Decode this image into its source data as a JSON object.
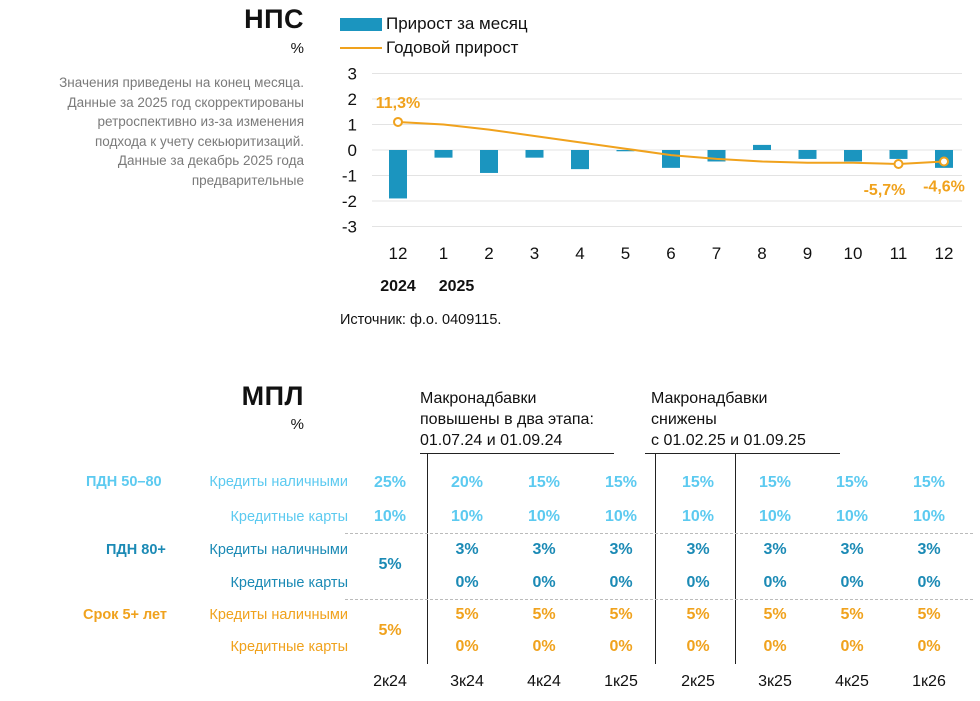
{
  "nps": {
    "title": "НПС",
    "unit": "%",
    "note_lines": [
      "Значения приведены на конец месяца.",
      "Данные за 2025 год скорректированы",
      "ретроспективно из-за изменения",
      "подхода к учету секьюритизаций.",
      "Данные за декабрь 2025 года",
      "предварительные"
    ],
    "legend_bar": "Прирост за месяц",
    "legend_line": "Годовой прирост",
    "source": "Источник: ф.о. 0409115."
  },
  "chart_data": {
    "type": "bar+line",
    "categories": [
      "12",
      "1",
      "2",
      "3",
      "4",
      "5",
      "6",
      "7",
      "8",
      "9",
      "10",
      "11",
      "12"
    ],
    "year_labels": [
      "2024",
      "2025"
    ],
    "ylim": [
      -3,
      3
    ],
    "yticks": [
      3,
      2,
      1,
      0,
      -1,
      -2,
      -3
    ],
    "series": [
      {
        "name": "Прирост за месяц",
        "kind": "bar",
        "color": "#1b95bf",
        "values": [
          -1.9,
          -0.3,
          -0.9,
          -0.3,
          -0.75,
          -0.05,
          -0.7,
          -0.45,
          0.2,
          -0.35,
          -0.45,
          -0.35,
          -0.7
        ]
      },
      {
        "name": "Годовой прирост",
        "kind": "line",
        "color": "#f0a21d",
        "values": [
          1.1,
          1.0,
          0.8,
          0.55,
          0.3,
          0.05,
          -0.2,
          -0.35,
          -0.45,
          -0.5,
          -0.5,
          -0.55,
          -0.45
        ]
      }
    ],
    "annotations": [
      {
        "index": 0,
        "text": "11,3%"
      },
      {
        "index": 11,
        "text": "-5,7%"
      },
      {
        "index": 12,
        "text": "-4,6%"
      }
    ]
  },
  "mpl": {
    "title": "МПЛ",
    "unit": "%",
    "header_left": [
      "Макронадбавки",
      "повышены в два этапа:",
      "01.07.24 и 01.09.24"
    ],
    "header_right": [
      "Макронадбавки",
      "снижены",
      "с 01.02.25 и 01.09.25"
    ],
    "quarters": [
      "2к24",
      "3к24",
      "4к24",
      "1к25",
      "2к25",
      "3к25",
      "4к25",
      "1к26"
    ],
    "groups": [
      {
        "label": "ПДН 50–80",
        "color": "#5ccaf0",
        "rows": [
          {
            "label": "Кредиты наличными",
            "values": [
              "25%",
              "20%",
              "15%",
              "15%",
              "15%",
              "15%",
              "15%",
              "15%"
            ]
          },
          {
            "label": "Кредитные карты",
            "values": [
              "10%",
              "10%",
              "10%",
              "10%",
              "10%",
              "10%",
              "10%",
              "10%"
            ]
          }
        ]
      },
      {
        "label": "ПДН 80+",
        "color": "#1b8ab5",
        "first_merged": "5%",
        "rows": [
          {
            "label": "Кредиты наличными",
            "values": [
              "3%",
              "3%",
              "3%",
              "3%",
              "3%",
              "3%",
              "3%"
            ]
          },
          {
            "label": "Кредитные карты",
            "values": [
              "0%",
              "0%",
              "0%",
              "0%",
              "0%",
              "0%",
              "0%"
            ]
          }
        ]
      },
      {
        "label": "Срок 5+ лет",
        "color": "#f0a21d",
        "first_merged": "5%",
        "rows": [
          {
            "label": "Кредиты наличными",
            "values": [
              "5%",
              "5%",
              "5%",
              "5%",
              "5%",
              "5%",
              "5%"
            ]
          },
          {
            "label": "Кредитные карты",
            "values": [
              "0%",
              "0%",
              "0%",
              "0%",
              "0%",
              "0%",
              "0%"
            ]
          }
        ]
      }
    ]
  }
}
